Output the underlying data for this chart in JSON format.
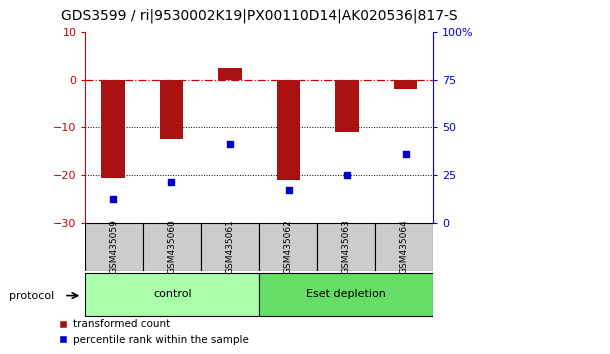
{
  "title": "GDS3599 / ri|9530002K19|PX00110D14|AK020536|817-S",
  "categories": [
    "GSM435059",
    "GSM435060",
    "GSM435061",
    "GSM435062",
    "GSM435063",
    "GSM435064"
  ],
  "red_values": [
    -20.5,
    -12.5,
    2.5,
    -21.0,
    -11.0,
    -2.0
  ],
  "blue_values_left": [
    -25.0,
    -21.5,
    -13.5,
    -23.0,
    -20.0,
    -15.5
  ],
  "left_ylim": [
    -30,
    10
  ],
  "right_ylim": [
    0,
    100
  ],
  "left_yticks": [
    -30,
    -20,
    -10,
    0,
    10
  ],
  "right_yticks": [
    0,
    25,
    50,
    75,
    100
  ],
  "right_yticklabels": [
    "0",
    "25",
    "50",
    "75",
    "100%"
  ],
  "hline_y": 0,
  "dotted_lines": [
    -10,
    -20
  ],
  "bar_color": "#aa1111",
  "scatter_color": "#0000cc",
  "bar_width": 0.4,
  "groups": [
    {
      "label": "control",
      "indices": [
        0,
        1,
        2
      ],
      "color": "#aaffaa"
    },
    {
      "label": "Eset depletion",
      "indices": [
        3,
        4,
        5
      ],
      "color": "#66dd66"
    }
  ],
  "protocol_label": "protocol",
  "legend_red_label": "transformed count",
  "legend_blue_label": "percentile rank within the sample",
  "title_fontsize": 10,
  "axis_color_left": "#cc0000",
  "axis_color_right": "#0000cc",
  "label_box_color": "#cccccc"
}
